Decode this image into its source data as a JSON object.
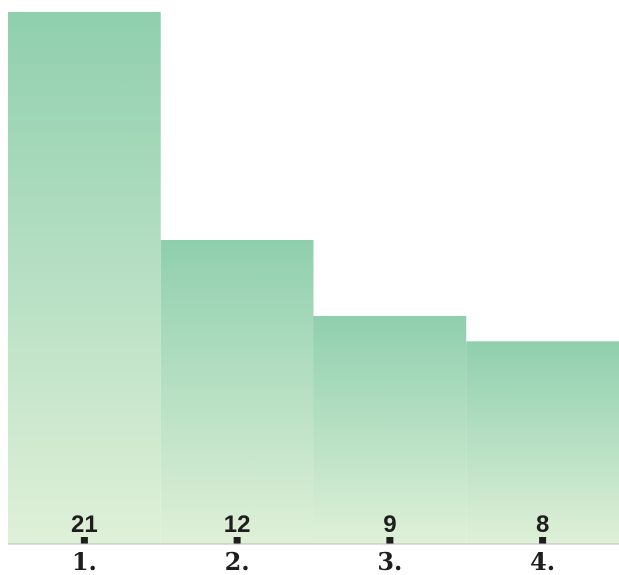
{
  "chart_data": {
    "type": "bar",
    "categories": [
      "1.",
      "2.",
      "3.",
      "4."
    ],
    "values": [
      21,
      12,
      9,
      8
    ],
    "title": "",
    "xlabel": "",
    "ylabel": "",
    "ylim": [
      0,
      21
    ],
    "grid": false,
    "legend": "none",
    "colors": {
      "bar_top": "#8fcfae",
      "bar_bottom": "#dff0d8",
      "marker": "#1e1e1e",
      "axis": "#bbbbbb",
      "text": "#1e1e1e"
    }
  }
}
